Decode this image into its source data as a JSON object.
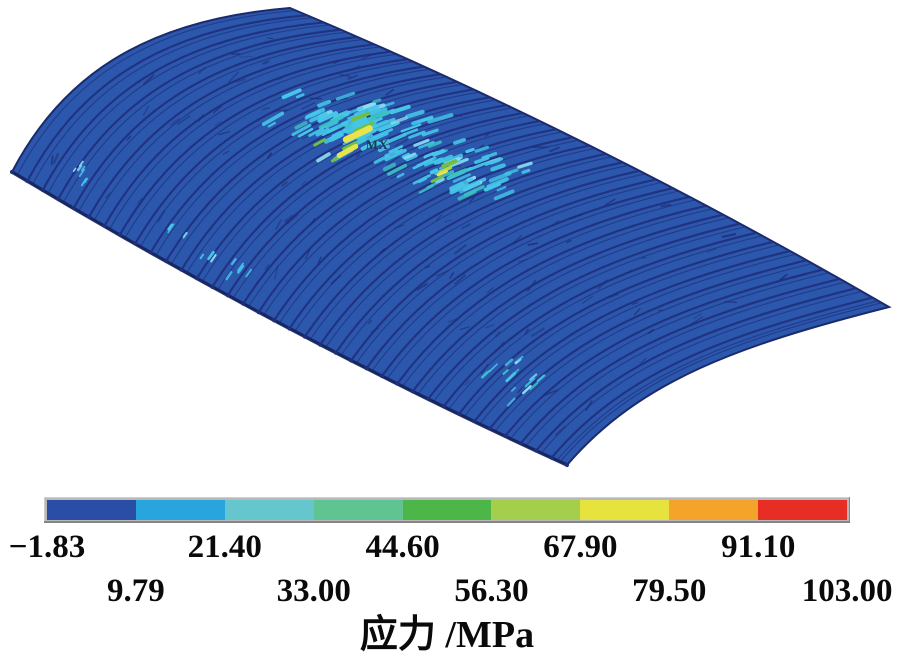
{
  "chart_data": {
    "type": "heatmap",
    "subtype": "fea-stress-contour-plot",
    "title": "应力 /MPa",
    "units": "MPa",
    "min": -1.83,
    "max": 103.0,
    "contour_levels": [
      -1.83,
      9.79,
      21.4,
      33.0,
      44.6,
      56.3,
      67.9,
      79.5,
      91.1,
      103.0
    ],
    "band_colors": [
      "#2a4ea5",
      "#29a5dd",
      "#66c6ce",
      "#5fc392",
      "#4cb748",
      "#a6ce4d",
      "#e6e33e",
      "#f5a42b",
      "#e62e24"
    ],
    "legend_labels_row1": [
      "−1.83",
      "21.40",
      "44.60",
      "67.90",
      "91.10"
    ],
    "legend_labels_row2": [
      "9.79",
      "33.00",
      "56.30",
      "79.50",
      "103.00"
    ],
    "legend_position": "bottom",
    "max_marker": "MX",
    "model": "Ribbed cylindrical shell (corrugated barrel vault) shown in oblique 3D view; surface almost entirely in the lowest stress band with two local stress-concentration zones near mid-span, peak stress at the MX marker"
  },
  "shell": {
    "surface_color": "#2b57ac",
    "rib_color": "#202f7d",
    "outline_color": "#1b2a6b",
    "eave_shadow_color": "#17265f",
    "scratch_color": "#1d2e78",
    "rib_count": 36,
    "speckle_colors": {
      "cyan": "#45c6e8",
      "light_cyan": "#8bdcf2",
      "teal": "#3cc2c0",
      "green": "#6fbf44",
      "yellow_green": "#b5d84b",
      "yellow": "#e9e44c"
    }
  }
}
